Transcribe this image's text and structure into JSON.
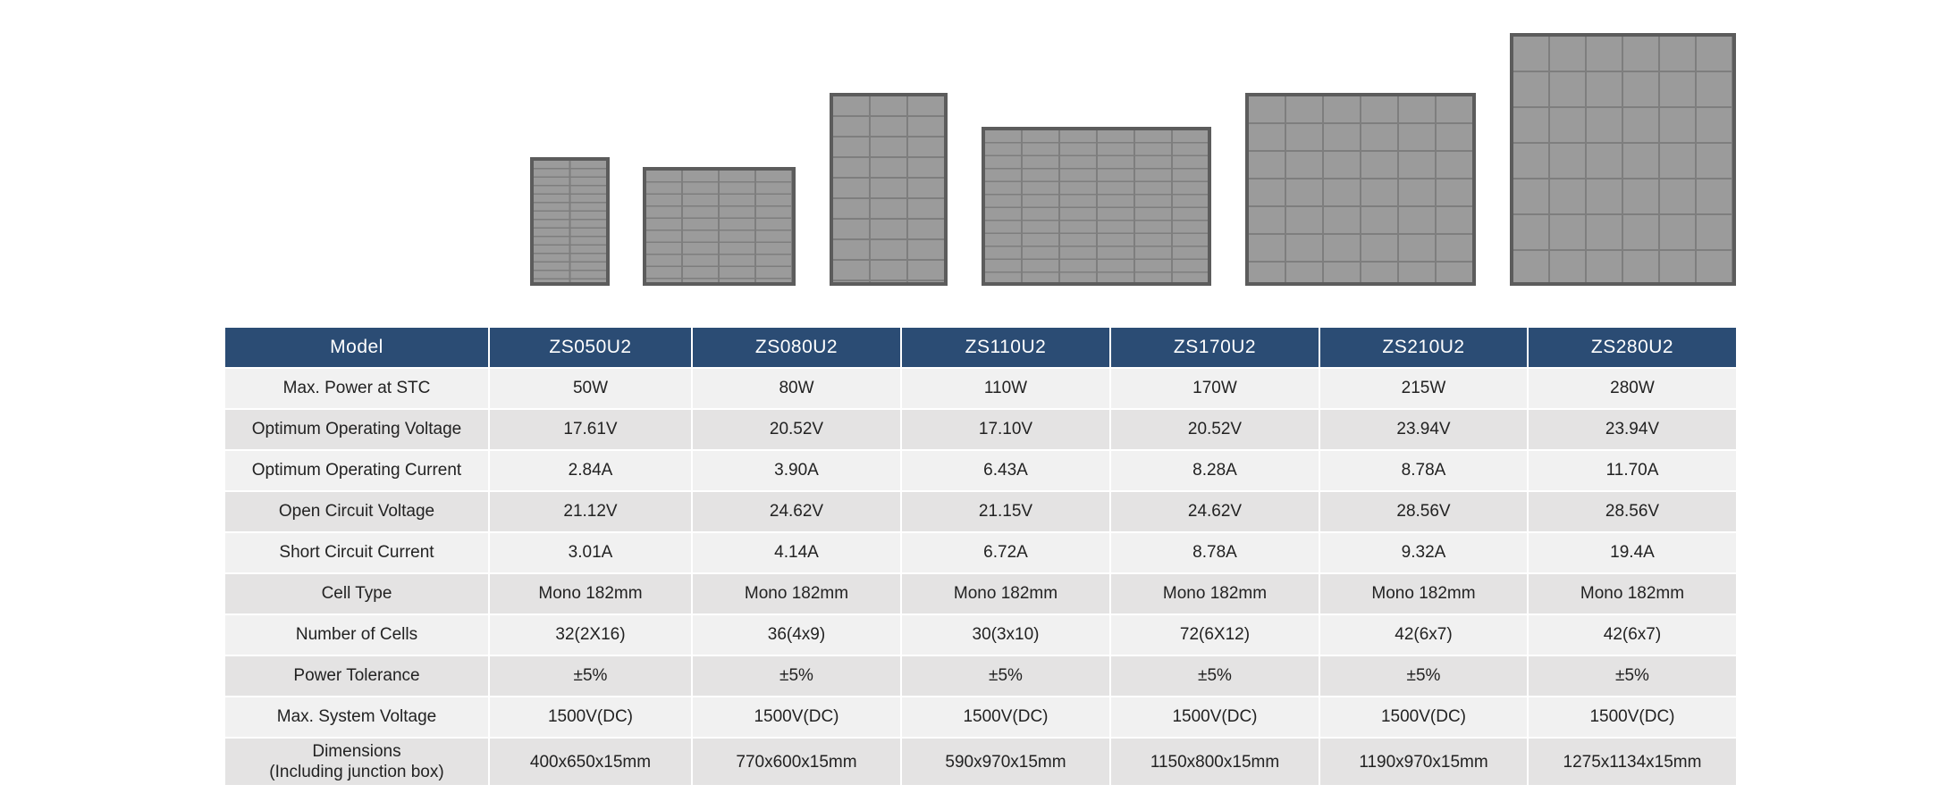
{
  "panels": [
    {
      "name": "panel-zs050u2"
    },
    {
      "name": "panel-zs080u2"
    },
    {
      "name": "panel-zs110u2"
    },
    {
      "name": "panel-zs170u2"
    },
    {
      "name": "panel-zs210u2"
    },
    {
      "name": "panel-zs280u2"
    }
  ],
  "table": {
    "header_label": "Model",
    "models": [
      "ZS050U2",
      "ZS080U2",
      "ZS110U2",
      "ZS170U2",
      "ZS210U2",
      "ZS280U2"
    ],
    "header_color": "#2b4c74",
    "rows": [
      {
        "label": "Max. Power at STC",
        "values": [
          "50W",
          "80W",
          "110W",
          "170W",
          "215W",
          "280W"
        ]
      },
      {
        "label": "Optimum Operating Voltage",
        "values": [
          "17.61V",
          "20.52V",
          "17.10V",
          "20.52V",
          "23.94V",
          "23.94V"
        ]
      },
      {
        "label": "Optimum Operating Current",
        "values": [
          "2.84A",
          "3.90A",
          "6.43A",
          "8.28A",
          "8.78A",
          "11.70A"
        ]
      },
      {
        "label": "Open Circuit Voltage",
        "values": [
          "21.12V",
          "24.62V",
          "21.15V",
          "24.62V",
          "28.56V",
          "28.56V"
        ]
      },
      {
        "label": "Short Circuit Current",
        "values": [
          "3.01A",
          "4.14A",
          "6.72A",
          "8.78A",
          "9.32A",
          "19.4A"
        ]
      },
      {
        "label": "Cell Type",
        "values": [
          "Mono 182mm",
          "Mono 182mm",
          "Mono 182mm",
          "Mono 182mm",
          "Mono 182mm",
          "Mono 182mm"
        ]
      },
      {
        "label": "Number of Cells",
        "values": [
          "32(2X16)",
          "36(4x9)",
          "30(3x10)",
          "72(6X12)",
          "42(6x7)",
          "42(6x7)"
        ]
      },
      {
        "label": "Power Tolerance",
        "values": [
          "±5%",
          "±5%",
          "±5%",
          "±5%",
          "±5%",
          "±5%"
        ]
      },
      {
        "label": "Max. System Voltage",
        "values": [
          "1500V(DC)",
          "1500V(DC)",
          "1500V(DC)",
          "1500V(DC)",
          "1500V(DC)",
          "1500V(DC)"
        ]
      },
      {
        "label_line1": "Dimensions",
        "label_line2": "(Including junction box)",
        "values": [
          "400x650x15mm",
          "770x600x15mm",
          "590x970x15mm",
          "1150x800x15mm",
          "1190x970x15mm",
          "1275x1134x15mm"
        ]
      }
    ]
  }
}
